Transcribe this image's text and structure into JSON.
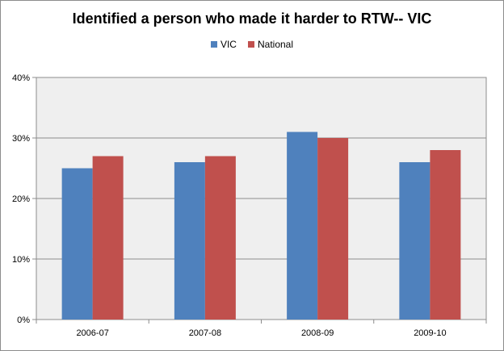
{
  "chart_data": {
    "type": "bar",
    "title": "Identified a person who made it harder to RTW--  VIC",
    "categories": [
      "2006-07",
      "2007-08",
      "2008-09",
      "2009-10"
    ],
    "series": [
      {
        "name": "VIC",
        "values": [
          25,
          26,
          31,
          26
        ],
        "color": "#4f81bd"
      },
      {
        "name": "National",
        "values": [
          27,
          27,
          30,
          28
        ],
        "color": "#c0504d"
      }
    ],
    "ylim": [
      0,
      40
    ],
    "yticks": [
      "0%",
      "10%",
      "20%",
      "30%",
      "40%"
    ],
    "grid": true,
    "legend_position": "top",
    "plot_background": "#efefef"
  }
}
